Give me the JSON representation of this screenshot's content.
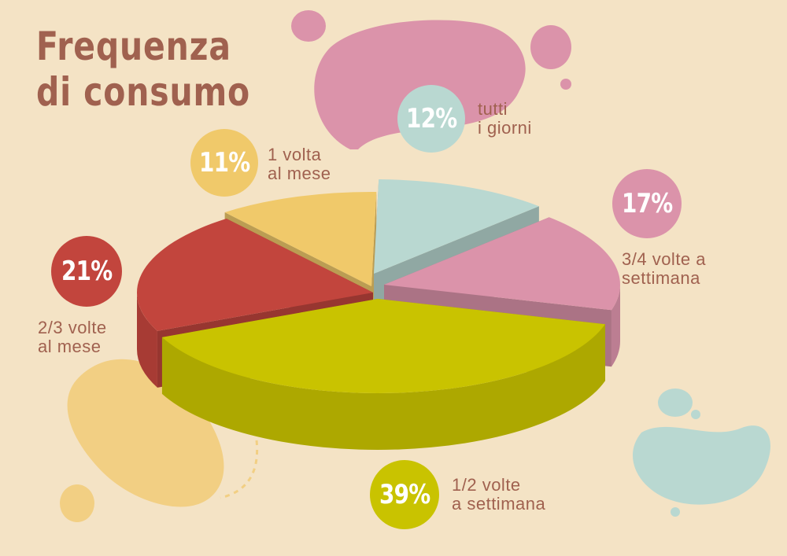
{
  "chart_data": {
    "type": "pie",
    "title_lines": [
      "Frequenza",
      "di consumo"
    ],
    "slices": [
      {
        "value": 12,
        "percent_label": "12%",
        "label_lines": [
          "tutti",
          "i giorni"
        ],
        "color": "#b9d8d1"
      },
      {
        "value": 17,
        "percent_label": "17%",
        "label_lines": [
          "3/4 volte a",
          "settimana"
        ],
        "color": "#db93aa"
      },
      {
        "value": 39,
        "percent_label": "39%",
        "label_lines": [
          "1/2 volte",
          "a settimana"
        ],
        "color": "#c9c300"
      },
      {
        "value": 21,
        "percent_label": "21%",
        "label_lines": [
          "2/3 volte",
          "al mese"
        ],
        "color": "#c2453d"
      },
      {
        "value": 11,
        "percent_label": "11%",
        "label_lines": [
          "1 volta",
          "al mese"
        ],
        "color": "#f0c96a"
      }
    ]
  },
  "colors": {
    "background": "#f4e3c5",
    "text": "#a0614f"
  }
}
